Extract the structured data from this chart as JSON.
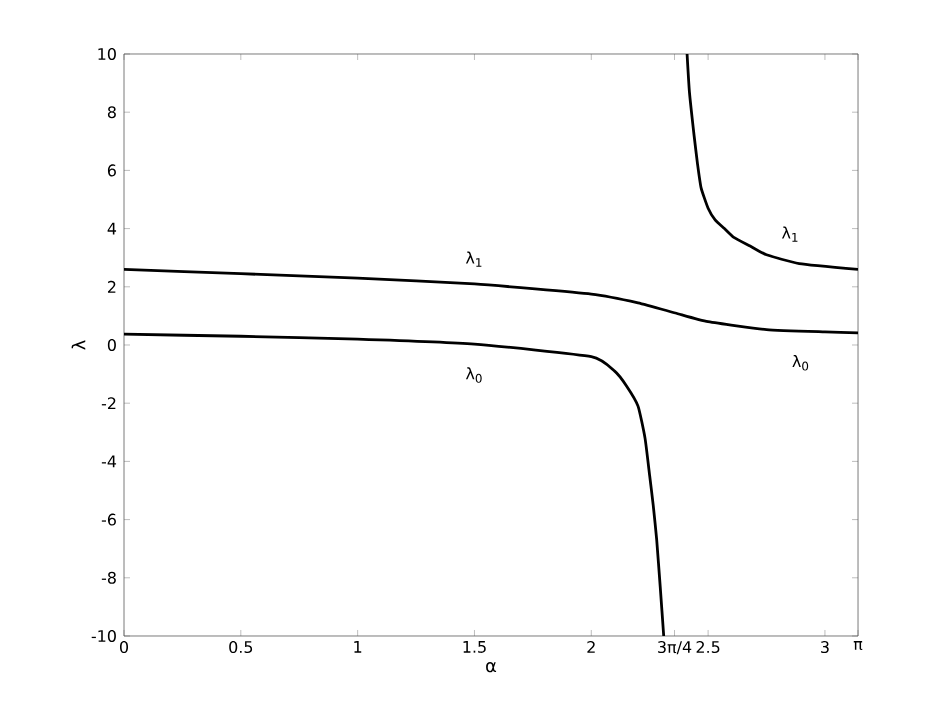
{
  "chart_data": {
    "type": "line",
    "xlabel": "α",
    "ylabel": "λ",
    "xlim": [
      0,
      3.1416
    ],
    "ylim": [
      -10,
      10
    ],
    "xticks": [
      0,
      0.5,
      1,
      1.5,
      2,
      {
        "value": 2.3562,
        "label": "3π/4"
      },
      2.5,
      3,
      {
        "value": 3.1416,
        "label": "π"
      }
    ],
    "yticks": [
      -10,
      -8,
      -6,
      -4,
      -2,
      0,
      2,
      4,
      6,
      8,
      10
    ],
    "grid": false,
    "marker": "none",
    "line_style": "solid",
    "series": [
      {
        "color": "#000000",
        "x": [
          0,
          0.5,
          1,
          1.5,
          2.0,
          2.1,
          2.15,
          2.2,
          2.23,
          2.25,
          2.265,
          2.28,
          2.295,
          2.31
        ],
        "values": [
          0.37,
          0.3,
          0.2,
          0.03,
          -0.4,
          -0.9,
          -1.4,
          -2.1,
          -3.2,
          -4.5,
          -5.5,
          -6.7,
          -8.3,
          -10
        ]
      },
      {
        "color": "#000000",
        "x": [
          0,
          0.5,
          1,
          1.5,
          2.0,
          2.2,
          2.36,
          2.5,
          2.75,
          3.0,
          3.1416
        ],
        "values": [
          2.6,
          2.45,
          2.3,
          2.1,
          1.75,
          1.45,
          1.1,
          0.8,
          0.53,
          0.45,
          0.42
        ]
      },
      {
        "color": "#000000",
        "x": [
          2.41,
          2.42,
          2.44,
          2.455,
          2.47,
          2.5,
          2.53,
          2.57,
          2.61,
          2.68,
          2.75,
          2.89,
          3.1416
        ],
        "values": [
          10,
          8.7,
          7.2,
          6.2,
          5.4,
          4.7,
          4.3,
          4.0,
          3.7,
          3.4,
          3.1,
          2.8,
          2.6
        ]
      }
    ],
    "annotations": [
      "λ$_{1}$",
      "λ$_{0}$",
      "λ$_{1}$",
      "λ$_{0}$"
    ]
  }
}
